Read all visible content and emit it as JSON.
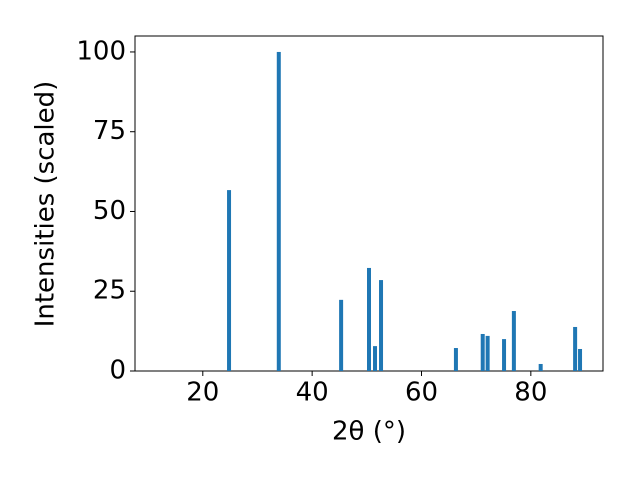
{
  "chart_data": {
    "type": "bar",
    "x": [
      24.8,
      33.9,
      45.3,
      50.4,
      51.5,
      52.6,
      66.3,
      71.2,
      72.1,
      75.1,
      76.9,
      81.8,
      88.1,
      89.0
    ],
    "values": [
      56.7,
      100,
      22.3,
      32.3,
      7.8,
      28.5,
      7.2,
      11.6,
      11.0,
      10.0,
      18.8,
      2.2,
      13.8,
      6.9
    ],
    "color": "#1f77b4",
    "x_label": "2θ (°)",
    "y_label": "Intensities (scaled)",
    "xlim": [
      7.6,
      93.2
    ],
    "xticks": [
      20,
      40,
      60,
      80
    ],
    "ylim": [
      0,
      105
    ],
    "yticks": [
      0,
      25,
      50,
      75,
      100
    ],
    "grid": false
  }
}
